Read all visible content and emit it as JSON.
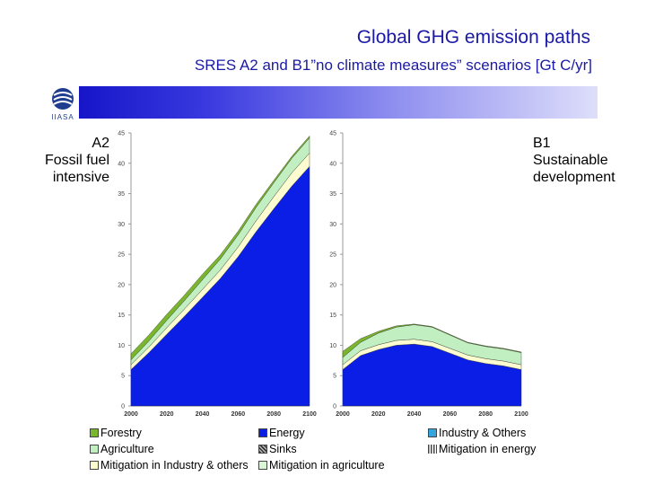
{
  "title": "Global GHG emission paths",
  "subtitle": "SRES A2 and B1”no climate measures” scenarios [Gt C/yr]",
  "logo": {
    "name": "IIASA",
    "text": "IIASA"
  },
  "left_label": {
    "lines": [
      "A2",
      "Fossil fuel",
      "intensive"
    ]
  },
  "right_label": {
    "lines": [
      "B1",
      "Sustainable",
      "development"
    ]
  },
  "colors": {
    "energy": "#0a1ee6",
    "mitigation_energy": "#fdfbd0",
    "mitigation_agriculture": "#d9f7d4",
    "mitigation_industry": "#fdfbd0",
    "agriculture": "#c2efc2",
    "forestry": "#7ab52e",
    "industry": "#33a6dd",
    "sinks": "#888888",
    "band_start": "#1616c8"
  },
  "legend": [
    {
      "key": "forestry",
      "label": "Forestry",
      "pattern": "solid"
    },
    {
      "key": "energy",
      "label": "Energy",
      "pattern": "solid"
    },
    {
      "key": "industry",
      "label": "Industry & Others",
      "pattern": "solid"
    },
    {
      "key": "agriculture",
      "label": "Agriculture",
      "pattern": "solid"
    },
    {
      "key": "sinks",
      "label": "Sinks",
      "pattern": "hatch"
    },
    {
      "key": "mitigation_energy",
      "label": "Mitigation in energy",
      "pattern": "lines"
    },
    {
      "key": "mitigation_industry",
      "label": "Mitigation in Industry & others",
      "pattern": "solid"
    },
    {
      "key": "mitigation_agriculture",
      "label": "Mitigation in agriculture",
      "pattern": "solid"
    }
  ],
  "chart_data": [
    {
      "type": "area",
      "name": "A2",
      "title": "A2 Fossil fuel intensive",
      "x": [
        2000,
        2010,
        2020,
        2030,
        2040,
        2050,
        2060,
        2070,
        2080,
        2090,
        2100
      ],
      "xticks": [
        "2000",
        "2020",
        "2040",
        "2060",
        "2080",
        "2100"
      ],
      "yticks": [
        "0",
        "5",
        "10",
        "15",
        "20",
        "25",
        "30",
        "35",
        "40",
        "45"
      ],
      "ylim": [
        0,
        45
      ],
      "stack_order": [
        "energy",
        "mitigation_energy",
        "agriculture",
        "forestry"
      ],
      "series": [
        {
          "key": "energy",
          "name": "Energy",
          "values": [
            6,
            8.8,
            11.8,
            14.8,
            17.9,
            21,
            24.6,
            28.7,
            32.5,
            36.2,
            39.5
          ]
        },
        {
          "key": "mitigation_energy",
          "name": "Mitigation in energy",
          "values": [
            0.8,
            0.9,
            1.1,
            1.2,
            1.3,
            1.4,
            1.6,
            1.8,
            2,
            2.2,
            2.2
          ]
        },
        {
          "key": "agriculture",
          "name": "Agriculture",
          "values": [
            0.8,
            1,
            1.2,
            1.4,
            1.6,
            1.8,
            2,
            2.2,
            2.3,
            2.4,
            2.5
          ]
        },
        {
          "key": "forestry",
          "name": "Forestry",
          "values": [
            1,
            1,
            1,
            0.9,
            0.9,
            0.7,
            0.6,
            0.5,
            0.4,
            0.3,
            0.3
          ]
        }
      ]
    },
    {
      "type": "area",
      "name": "B1",
      "title": "B1 Sustainable development",
      "x": [
        2000,
        2010,
        2020,
        2030,
        2040,
        2050,
        2060,
        2070,
        2080,
        2090,
        2100
      ],
      "xticks": [
        "2000",
        "2020",
        "2040",
        "2060",
        "2080",
        "2100"
      ],
      "yticks": [
        "0",
        "5",
        "10",
        "15",
        "20",
        "25",
        "30",
        "35",
        "40",
        "45"
      ],
      "ylim": [
        0,
        45
      ],
      "stack_order": [
        "energy",
        "mitigation_energy",
        "agriculture",
        "forestry"
      ],
      "series": [
        {
          "key": "energy",
          "name": "Energy",
          "values": [
            6,
            8.3,
            9.3,
            10,
            10.2,
            9.8,
            8.7,
            7.6,
            7,
            6.6,
            6
          ]
        },
        {
          "key": "mitigation_energy",
          "name": "Mitigation in energy",
          "values": [
            0.8,
            0.8,
            0.8,
            0.8,
            0.8,
            0.8,
            0.8,
            0.8,
            0.8,
            0.8,
            0.8
          ]
        },
        {
          "key": "agriculture",
          "name": "Agriculture",
          "values": [
            1.2,
            1.4,
            1.9,
            2.2,
            2.4,
            2.4,
            2.2,
            2,
            2,
            2,
            2
          ]
        },
        {
          "key": "forestry",
          "name": "Forestry",
          "values": [
            1,
            0.6,
            0.3,
            0.2,
            0.1,
            0.1,
            0.1,
            0.1,
            0.1,
            0.1,
            0.1
          ]
        }
      ]
    }
  ]
}
